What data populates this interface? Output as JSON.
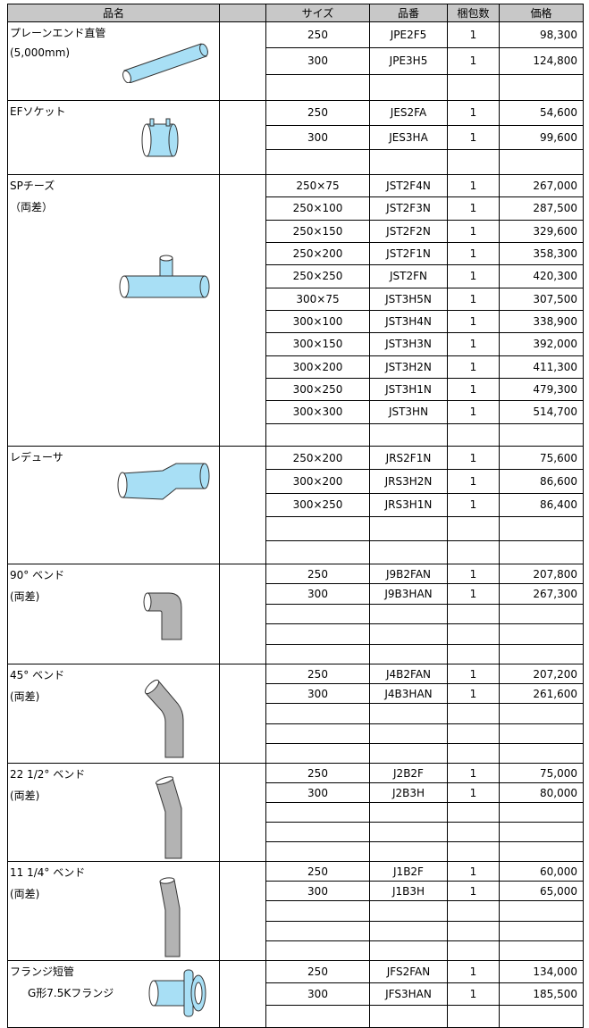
{
  "header": [
    "品名",
    "サイズ",
    "品番",
    "梱包数",
    "価格"
  ],
  "groups": [
    {
      "name": "プレーンエンド直管",
      "note": "(5,000mm)",
      "rows": [
        [
          "250",
          "JPE2F5",
          "1",
          "98,300"
        ],
        [
          "300",
          "JPE3H5",
          "1",
          "124,800"
        ]
      ]
    },
    {
      "name": "EFソケット",
      "rows": [
        [
          "250",
          "JES2FA",
          "1",
          "54,600"
        ],
        [
          "300",
          "JES3HA",
          "1",
          "99,600"
        ]
      ]
    },
    {
      "name": "SPチーズ",
      "note": "（両差）",
      "rows": [
        [
          "250×75",
          "JST2F4N",
          "1",
          "267,000"
        ],
        [
          "250×100",
          "JST2F3N",
          "1",
          "287,500"
        ],
        [
          "250×150",
          "JST2F2N",
          "1",
          "329,600"
        ],
        [
          "250×200",
          "JST2F1N",
          "1",
          "358,300"
        ],
        [
          "250×250",
          "JST2FN",
          "1",
          "420,300"
        ],
        [
          "300×75",
          "JST3H5N",
          "1",
          "307,500"
        ],
        [
          "300×100",
          "JST3H4N",
          "1",
          "338,900"
        ],
        [
          "300×150",
          "JST3H3N",
          "1",
          "392,000"
        ],
        [
          "300×200",
          "JST3H2N",
          "1",
          "411,300"
        ],
        [
          "300×250",
          "JST3H1N",
          "1",
          "479,300"
        ],
        [
          "300×300",
          "JST3HN",
          "1",
          "514,700"
        ]
      ]
    },
    {
      "name": "レデューサ",
      "rows": [
        [
          "250×200",
          "JRS2F1N",
          "1",
          "75,600"
        ],
        [
          "300×200",
          "JRS3H2N",
          "1",
          "86,600"
        ],
        [
          "300×250",
          "JRS3H1N",
          "1",
          "86,400"
        ]
      ]
    },
    {
      "name": "90° ベンド",
      "note": "(両差)",
      "rows": [
        [
          "250",
          "J9B2FAN",
          "1",
          "207,800"
        ],
        [
          "300",
          "J9B3HAN",
          "1",
          "267,300"
        ]
      ]
    },
    {
      "name": "45° ベンド",
      "note": "(両差)",
      "rows": [
        [
          "250",
          "J4B2FAN",
          "1",
          "207,200"
        ],
        [
          "300",
          "J4B3HAN",
          "1",
          "261,600"
        ]
      ]
    },
    {
      "name": "22 1/2° ベンド",
      "note": "(両差)",
      "rows": [
        [
          "250",
          "J2B2F",
          "1",
          "75,000"
        ],
        [
          "300",
          "J2B3H",
          "1",
          "80,000"
        ]
      ]
    },
    {
      "name": "11 1/4° ベンド",
      "note": "(両差)",
      "rows": [
        [
          "250",
          "J1B2F",
          "1",
          "60,000"
        ],
        [
          "300",
          "J1B3H",
          "1",
          "65,000"
        ]
      ]
    },
    {
      "name": "フランジ短管",
      "note": "G形7.5Kフランジ",
      "rows": [
        [
          "250",
          "JFS2FAN",
          "1",
          "134,000"
        ],
        [
          "300",
          "JFS3HAN",
          "1",
          "185,500"
        ]
      ]
    }
  ]
}
